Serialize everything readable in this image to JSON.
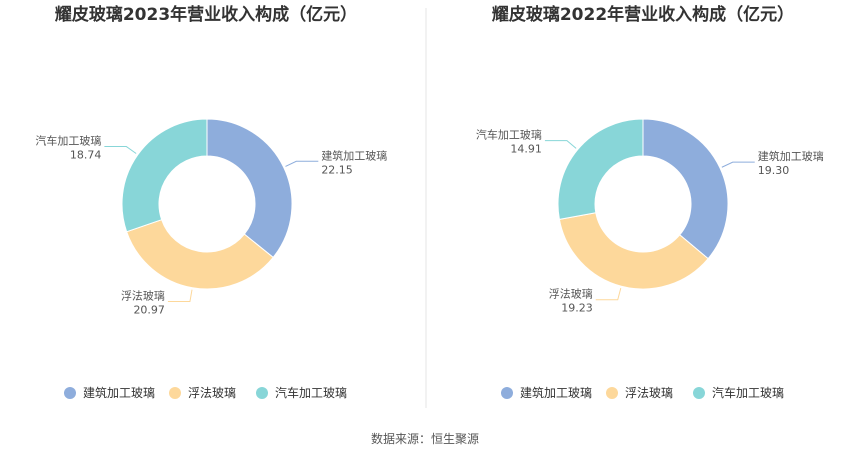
{
  "source_text": "数据来源：恒生聚源",
  "chart_data": [
    {
      "type": "pie",
      "title": "耀皮玻璃2023年营业收入构成（亿元）",
      "categories": [
        "建筑加工玻璃",
        "浮法玻璃",
        "汽车加工玻璃"
      ],
      "values": [
        22.15,
        20.97,
        18.74
      ],
      "value_labels": [
        "22.15",
        "20.97",
        "18.74"
      ],
      "colors": [
        "#8eaddc",
        "#fdd89b",
        "#88d6d8"
      ],
      "legend": [
        "建筑加工玻璃",
        "浮法玻璃",
        "汽车加工玻璃"
      ],
      "legend_position": "bottom"
    },
    {
      "type": "pie",
      "title": "耀皮玻璃2022年营业收入构成（亿元）",
      "categories": [
        "建筑加工玻璃",
        "浮法玻璃",
        "汽车加工玻璃"
      ],
      "values": [
        19.3,
        19.23,
        14.91
      ],
      "value_labels": [
        "19.30",
        "19.23",
        "14.91"
      ],
      "colors": [
        "#8eaddc",
        "#fdd89b",
        "#88d6d8"
      ],
      "legend": [
        "建筑加工玻璃",
        "浮法玻璃",
        "汽车加工玻璃"
      ],
      "legend_position": "bottom"
    }
  ]
}
